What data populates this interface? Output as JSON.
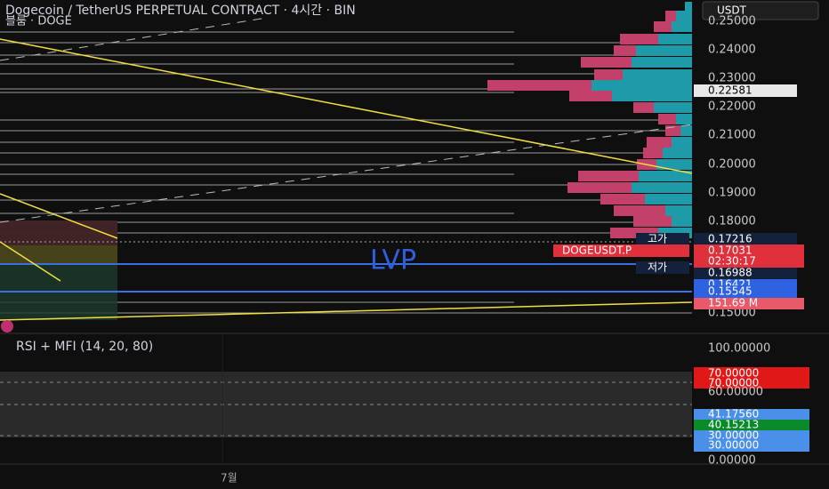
{
  "header": {
    "title": "Dogecoin / TetherUS PERPETUAL CONTRACT · 4시간 · BIN",
    "subtitle": "블룸 · DOGE",
    "currency": "USDT"
  },
  "annotation": "LVP",
  "price_axis": {
    "labels": [
      "0.25000",
      "0.24000",
      "0.23000",
      "0.22000",
      "0.21000",
      "0.20000",
      "0.19000",
      "0.18000",
      "0.15000"
    ],
    "current_line": "0.22581",
    "high": {
      "tag": "고가",
      "value": "0.17216"
    },
    "last": {
      "symbol": "DOGEUSDT.P",
      "value": "0.17031",
      "countdown": "02:30:17"
    },
    "low": {
      "tag": "저가",
      "value": "0.16988"
    },
    "levels": [
      "0.16421",
      "0.15545"
    ],
    "volume": "151.69 M"
  },
  "indicator": {
    "title": "RSI + MFI (14, 20, 80)",
    "axis": [
      "100.00000",
      "60.00000",
      "0.00000"
    ],
    "upper": [
      "70.00000",
      "70.00000"
    ],
    "rsi": "41.17560",
    "mfi": "40.15213",
    "lower": [
      "30.00000",
      "30.00000"
    ]
  },
  "time_axis": [
    "7월"
  ]
}
